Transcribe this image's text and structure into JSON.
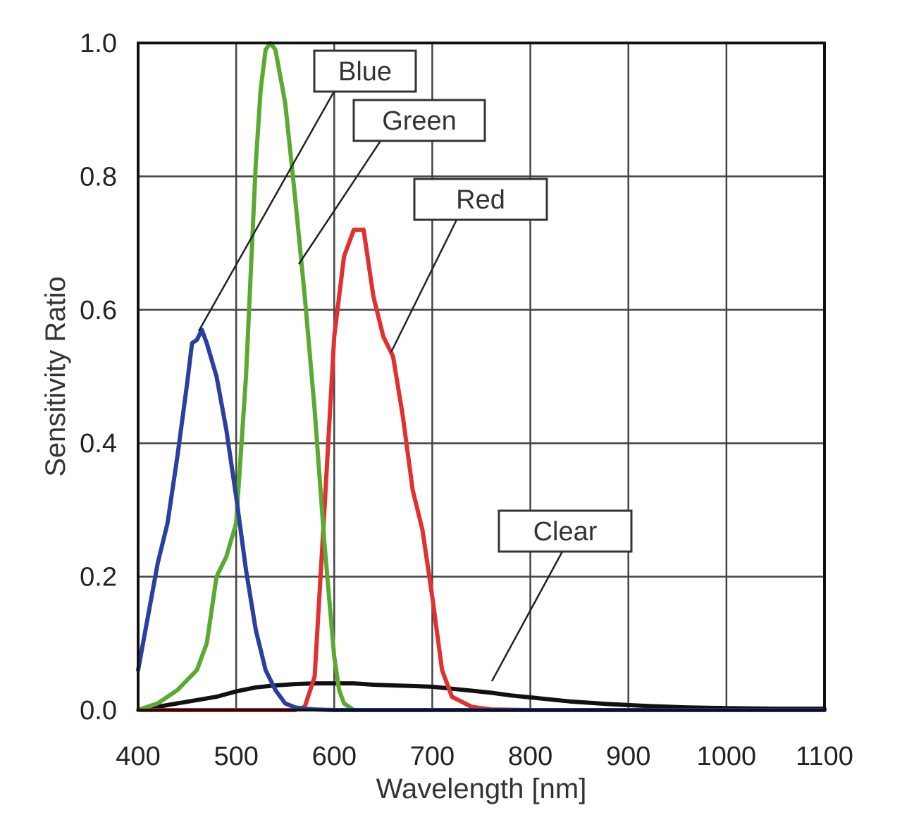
{
  "chart_data": {
    "type": "line",
    "xlabel": "Wavelength [nm]",
    "ylabel": "Sensitivity Ratio",
    "xlim": [
      400,
      1100
    ],
    "ylim": [
      0,
      1.0
    ],
    "grid": true,
    "legend": "callout labels with leader lines",
    "x_ticks": [
      "400",
      "500",
      "600",
      "700",
      "800",
      "900",
      "1000",
      "1100"
    ],
    "y_ticks": [
      "0.0",
      "0.2",
      "0.4",
      "0.6",
      "0.8",
      "1.0"
    ],
    "series": [
      {
        "name": "Blue",
        "color": "#2a3f9e",
        "x": [
          400,
          410,
          420,
          430,
          440,
          450,
          455,
          460,
          465,
          470,
          480,
          490,
          500,
          510,
          520,
          530,
          540,
          550,
          560,
          570,
          580,
          600,
          700,
          800,
          900,
          1000,
          1100
        ],
        "y": [
          0.06,
          0.14,
          0.22,
          0.28,
          0.38,
          0.49,
          0.55,
          0.555,
          0.57,
          0.55,
          0.5,
          0.42,
          0.32,
          0.21,
          0.12,
          0.06,
          0.03,
          0.01,
          0.004,
          0.002,
          0.001,
          0.0,
          0.0,
          0.0,
          0.0,
          0.0,
          0.0
        ]
      },
      {
        "name": "Green",
        "color": "#5aaa32",
        "x": [
          400,
          420,
          440,
          460,
          470,
          480,
          490,
          500,
          510,
          520,
          525,
          530,
          535,
          540,
          545,
          550,
          555,
          560,
          570,
          580,
          590,
          600,
          605,
          610,
          620,
          700,
          800,
          900,
          1100
        ],
        "y": [
          0.0,
          0.01,
          0.03,
          0.06,
          0.1,
          0.2,
          0.23,
          0.28,
          0.5,
          0.82,
          0.93,
          0.99,
          1.0,
          0.99,
          0.95,
          0.91,
          0.84,
          0.77,
          0.62,
          0.45,
          0.25,
          0.08,
          0.03,
          0.01,
          0.0,
          0.0,
          0.0,
          0.0,
          0.0
        ]
      },
      {
        "name": "Red",
        "color": "#e03030",
        "x": [
          400,
          500,
          560,
          570,
          580,
          590,
          600,
          610,
          620,
          630,
          640,
          650,
          660,
          670,
          680,
          690,
          700,
          710,
          720,
          740,
          760,
          800,
          1100
        ],
        "y": [
          0.0,
          0.0,
          0.0,
          0.005,
          0.05,
          0.3,
          0.56,
          0.68,
          0.72,
          0.72,
          0.62,
          0.56,
          0.53,
          0.44,
          0.33,
          0.27,
          0.17,
          0.06,
          0.02,
          0.005,
          0.001,
          0.0,
          0.0
        ]
      },
      {
        "name": "Clear",
        "color": "#111111",
        "x": [
          400,
          420,
          440,
          460,
          480,
          500,
          520,
          540,
          560,
          580,
          600,
          620,
          640,
          660,
          680,
          700,
          720,
          740,
          760,
          780,
          800,
          840,
          880,
          920,
          960,
          1000,
          1050,
          1100
        ],
        "y": [
          0.0,
          0.005,
          0.01,
          0.015,
          0.02,
          0.028,
          0.034,
          0.037,
          0.039,
          0.04,
          0.04,
          0.04,
          0.038,
          0.037,
          0.036,
          0.035,
          0.032,
          0.029,
          0.026,
          0.022,
          0.019,
          0.013,
          0.009,
          0.006,
          0.004,
          0.003,
          0.002,
          0.002
        ]
      }
    ]
  }
}
